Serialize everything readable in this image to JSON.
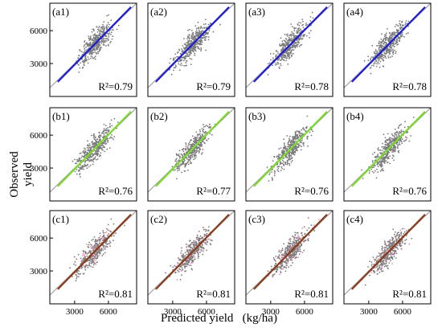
{
  "figure": {
    "ylabel": "Observed yield",
    "xlabel": "Predicted yield",
    "xunit": "(kg/ha)"
  },
  "colors": {
    "scatter": "#7a7a7a",
    "reference_line": "#9a9a9a",
    "row_a_fit": "#1c1cd6",
    "row_b_fit": "#7ddc2a",
    "row_c_fit": "#8a3b1c",
    "row_c_scatter_tint": "#e58fb0"
  },
  "chart_data": [
    {
      "panel": "(a1)",
      "type": "scatter",
      "r2_label": "R²=0.79",
      "r2": 0.79,
      "fit_color": "#1c1cd6",
      "xlim": [
        800,
        8500
      ],
      "ylim": [
        0,
        8500
      ],
      "xticks": [],
      "yticks": [
        3000,
        6000
      ],
      "yticklabels": [
        "3000",
        "6000"
      ]
    },
    {
      "panel": "(a2)",
      "type": "scatter",
      "r2_label": "R²=0.79",
      "r2": 0.79,
      "fit_color": "#1c1cd6",
      "xlim": [
        800,
        8500
      ],
      "ylim": [
        0,
        8500
      ],
      "xticks": [],
      "yticks": []
    },
    {
      "panel": "(a3)",
      "type": "scatter",
      "r2_label": "R²=0.78",
      "r2": 0.78,
      "fit_color": "#1c1cd6",
      "xlim": [
        800,
        8500
      ],
      "ylim": [
        0,
        8500
      ],
      "xticks": [],
      "yticks": []
    },
    {
      "panel": "(a4)",
      "type": "scatter",
      "r2_label": "R²=0.78",
      "r2": 0.78,
      "fit_color": "#1c1cd6",
      "xlim": [
        800,
        8500
      ],
      "ylim": [
        0,
        8500
      ],
      "xticks": [],
      "yticks": []
    },
    {
      "panel": "(b1)",
      "type": "scatter",
      "r2_label": "R²=0.76",
      "r2": 0.76,
      "fit_color": "#7ddc2a",
      "xlim": [
        800,
        8500
      ],
      "ylim": [
        0,
        8500
      ],
      "xticks": [],
      "yticks": [
        3000,
        6000
      ],
      "yticklabels": [
        "3000",
        "6000"
      ]
    },
    {
      "panel": "(b2)",
      "type": "scatter",
      "r2_label": "R²=0.77",
      "r2": 0.77,
      "fit_color": "#7ddc2a",
      "xlim": [
        800,
        8500
      ],
      "ylim": [
        0,
        8500
      ],
      "xticks": [],
      "yticks": []
    },
    {
      "panel": "(b3)",
      "type": "scatter",
      "r2_label": "R²=0.76",
      "r2": 0.76,
      "fit_color": "#7ddc2a",
      "xlim": [
        800,
        8500
      ],
      "ylim": [
        0,
        8500
      ],
      "xticks": [],
      "yticks": []
    },
    {
      "panel": "(b4)",
      "type": "scatter",
      "r2_label": "R²=0.76",
      "r2": 0.76,
      "fit_color": "#7ddc2a",
      "xlim": [
        800,
        8500
      ],
      "ylim": [
        0,
        8500
      ],
      "xticks": [],
      "yticks": []
    },
    {
      "panel": "(c1)",
      "type": "scatter",
      "r2_label": "R²=0.81",
      "r2": 0.81,
      "fit_color": "#8a3b1c",
      "xlim": [
        800,
        8500
      ],
      "ylim": [
        0,
        8500
      ],
      "xticks": [
        3000,
        6000
      ],
      "xticklabels": [
        "3000",
        "6000"
      ],
      "yticks": [
        3000,
        6000
      ],
      "yticklabels": [
        "3000",
        "6000"
      ]
    },
    {
      "panel": "(c2)",
      "type": "scatter",
      "r2_label": "R²=0.81",
      "r2": 0.81,
      "fit_color": "#8a3b1c",
      "xlim": [
        800,
        8500
      ],
      "ylim": [
        0,
        8500
      ],
      "xticks": [
        3000,
        6000
      ],
      "xticklabels": [
        "3000",
        "6000"
      ],
      "yticks": []
    },
    {
      "panel": "(c3)",
      "type": "scatter",
      "r2_label": "R²=0.81",
      "r2": 0.81,
      "fit_color": "#8a3b1c",
      "xlim": [
        800,
        8500
      ],
      "ylim": [
        0,
        8500
      ],
      "xticks": [
        3000,
        6000
      ],
      "xticklabels": [
        "3000",
        "6000"
      ],
      "yticks": []
    },
    {
      "panel": "(c4)",
      "type": "scatter",
      "r2_label": "R²=0.81",
      "r2": 0.81,
      "fit_color": "#8a3b1c",
      "xlim": [
        800,
        8500
      ],
      "ylim": [
        0,
        8500
      ],
      "xticks": [
        3000,
        6000
      ],
      "xticklabels": [
        "3000",
        "6000"
      ],
      "yticks": []
    }
  ]
}
